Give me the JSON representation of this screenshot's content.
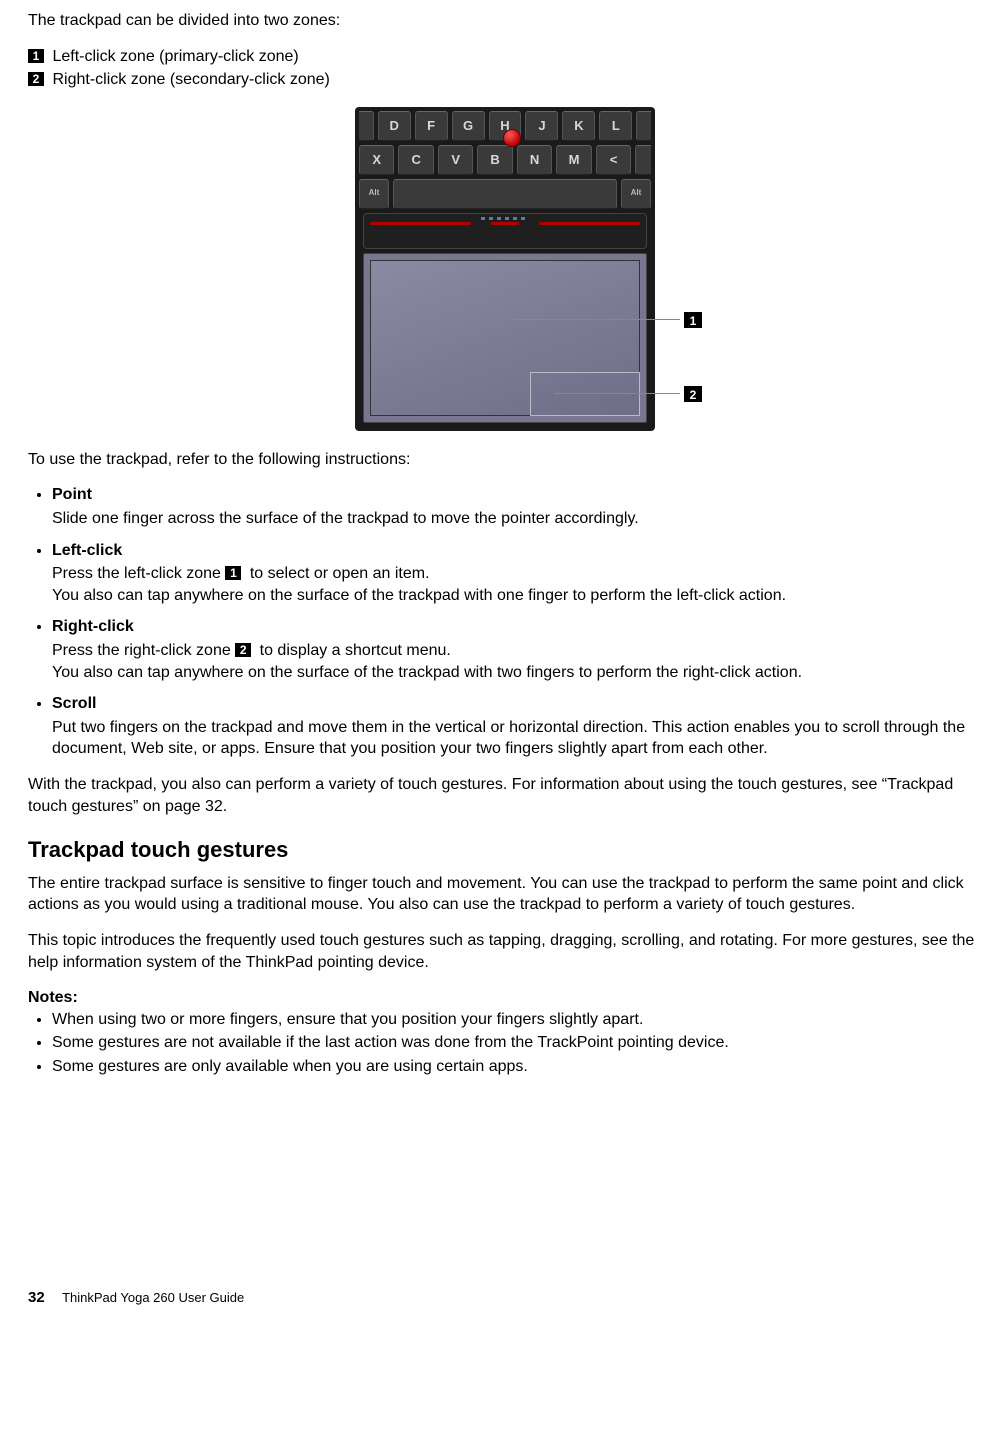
{
  "intro": "The trackpad can be divided into two zones:",
  "zones": {
    "z1_num": "1",
    "z1_text": "Left-click zone (primary-click zone)",
    "z2_num": "2",
    "z2_text": "Right-click zone (secondary-click zone)"
  },
  "figure": {
    "row1": [
      "D",
      "F",
      "G",
      "H",
      "J",
      "K",
      "L"
    ],
    "row2": [
      "X",
      "C",
      "V",
      "B",
      "N",
      "M",
      "<"
    ],
    "alt": "Alt",
    "callout1": "1",
    "callout2": "2",
    "colors": {
      "chassis": "#1a1a1a",
      "key_bg": "#3a3a3a",
      "key_text": "#d8d8d8",
      "trackpoint": "#c00000",
      "accent": "#b00000",
      "pad_surface": "#7e7e98",
      "zone_border": "#bbbbbb",
      "callout_line": "#888888"
    }
  },
  "instr_lead": "To use the trackpad, refer to the following instructions:",
  "instr": {
    "point_h": "Point",
    "point_t": "Slide one finger across the surface of the trackpad to move the pointer accordingly.",
    "lc_h": "Left-click",
    "lc_t1a": "Press the left-click zone ",
    "lc_t1_num": "1",
    "lc_t1b": " to select or open an item.",
    "lc_t2": "You also can tap anywhere on the surface of the trackpad with one finger to perform the left-click action.",
    "rc_h": "Right-click",
    "rc_t1a": "Press the right-click zone ",
    "rc_t1_num": "2",
    "rc_t1b": " to display a shortcut menu.",
    "rc_t2": "You also can tap anywhere on the surface of the trackpad with two fingers to perform the right-click action.",
    "sc_h": "Scroll",
    "sc_t": "Put two fingers on the trackpad and move them in the vertical or horizontal direction. This action enables you to scroll through the document, Web site, or apps. Ensure that you position your two fingers slightly apart from each other."
  },
  "after_bullets": "With the trackpad, you also can perform a variety of touch gestures. For information about using the touch gestures, see “Trackpad touch gestures” on page 32.",
  "section2_h": "Trackpad touch gestures",
  "section2_p1": "The entire trackpad surface is sensitive to finger touch and movement. You can use the trackpad to perform the same point and click actions as you would using a traditional mouse. You also can use the trackpad to perform a variety of touch gestures.",
  "section2_p2": "This topic introduces the frequently used touch gestures such as tapping, dragging, scrolling, and rotating. For more gestures, see the help information system of the ThinkPad pointing device.",
  "notes_h": "Notes:",
  "notes": [
    "When using two or more fingers, ensure that you position your fingers slightly apart.",
    "Some gestures are not available if the last action was done from the TrackPoint pointing device.",
    "Some gestures are only available when you are using certain apps."
  ],
  "footer": {
    "page": "32",
    "title": "ThinkPad Yoga 260 User Guide"
  }
}
